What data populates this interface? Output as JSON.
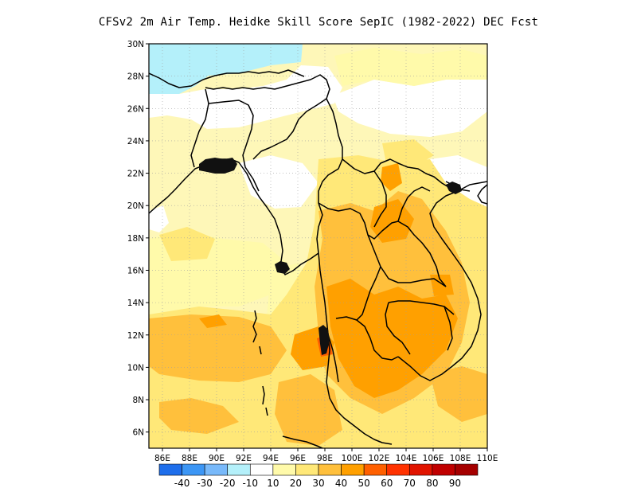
{
  "title": "CFSv2  2m Air Temp. Heidke Skill Score SepIC (1982-2022) DEC Fcst",
  "map": {
    "lon_range": [
      85,
      110
    ],
    "lat_range": [
      5,
      30
    ],
    "lat_labels": [
      "6N",
      "8N",
      "10N",
      "12N",
      "14N",
      "16N",
      "18N",
      "20N",
      "22N",
      "24N",
      "26N",
      "28N",
      "30N"
    ],
    "lon_labels": [
      "86E",
      "88E",
      "90E",
      "92E",
      "94E",
      "96E",
      "98E",
      "100E",
      "102E",
      "104E",
      "106E",
      "108E",
      "110E"
    ],
    "grid": "dotted",
    "background_color": "#fef7b8"
  },
  "colorbar": {
    "colors": [
      "#1e6eeb",
      "#3c96f5",
      "#78b9fa",
      "#b4f0fa",
      "#ffffff",
      "#fffaaa",
      "#ffe878",
      "#ffc03c",
      "#ffa000",
      "#ff6000",
      "#ff3200",
      "#e11400",
      "#c00000",
      "#a50000"
    ],
    "labels": [
      "-40",
      "-30",
      "-20",
      "-10",
      "10",
      "20",
      "30",
      "40",
      "50",
      "60",
      "70",
      "80",
      "90"
    ]
  }
}
